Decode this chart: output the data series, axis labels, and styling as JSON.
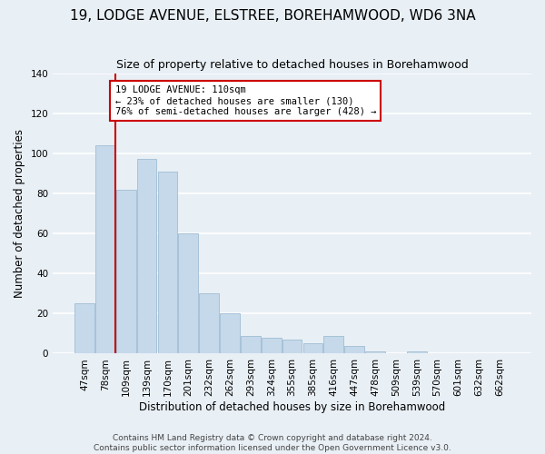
{
  "title": "19, LODGE AVENUE, ELSTREE, BOREHAMWOOD, WD6 3NA",
  "subtitle": "Size of property relative to detached houses in Borehamwood",
  "xlabel": "Distribution of detached houses by size in Borehamwood",
  "ylabel": "Number of detached properties",
  "categories": [
    "47sqm",
    "78sqm",
    "109sqm",
    "139sqm",
    "170sqm",
    "201sqm",
    "232sqm",
    "262sqm",
    "293sqm",
    "324sqm",
    "355sqm",
    "385sqm",
    "416sqm",
    "447sqm",
    "478sqm",
    "509sqm",
    "539sqm",
    "570sqm",
    "601sqm",
    "632sqm",
    "662sqm"
  ],
  "values": [
    25,
    104,
    82,
    97,
    91,
    60,
    30,
    20,
    9,
    8,
    7,
    5,
    9,
    4,
    1,
    0,
    1,
    0,
    0,
    0,
    0
  ],
  "bar_color": "#c5d9ea",
  "bar_edge_color": "#a0bdd4",
  "highlight_line_index": 2,
  "highlight_color": "#cc0000",
  "ylim": [
    0,
    140
  ],
  "yticks": [
    0,
    20,
    40,
    60,
    80,
    100,
    120,
    140
  ],
  "annotation_title": "19 LODGE AVENUE: 110sqm",
  "annotation_line1": "← 23% of detached houses are smaller (130)",
  "annotation_line2": "76% of semi-detached houses are larger (428) →",
  "annotation_box_color": "#ffffff",
  "annotation_box_edge": "#cc0000",
  "footer1": "Contains HM Land Registry data © Crown copyright and database right 2024.",
  "footer2": "Contains public sector information licensed under the Open Government Licence v3.0.",
  "background_color": "#e8eff5",
  "grid_color": "#ffffff",
  "title_fontsize": 11,
  "subtitle_fontsize": 9,
  "axis_label_fontsize": 8.5,
  "tick_fontsize": 7.5,
  "annotation_fontsize": 7.5,
  "footer_fontsize": 6.5
}
